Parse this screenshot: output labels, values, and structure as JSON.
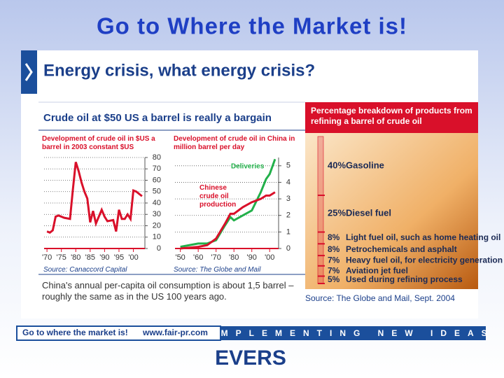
{
  "slide": {
    "title": "Go to Where the Market is!",
    "heading": "Energy crisis, what energy crisis?",
    "subheading": "Crude oil at $50 US a barrel is really a bargain",
    "note": "China's annual per-capita oil consumption is about 1,5 barrel – roughly the same as in the US 100 years ago.",
    "footer": {
      "slogan": "Go to where the market is!",
      "url": "www.fair-pr.com",
      "tagline": "IMPLEMENTING NEW IDEAS",
      "logo": "EVERS"
    }
  },
  "chart_data": [
    {
      "type": "line",
      "title": "Development of crude oil in $US a barrel in 2003 constant $US",
      "source": "Source: Canaccord Capital",
      "color": "#d9102a",
      "x": [
        1970,
        1971,
        1972,
        1973,
        1974,
        1976,
        1978,
        1979,
        1980,
        1981,
        1982,
        1983,
        1984,
        1985,
        1986,
        1987,
        1988,
        1989,
        1990,
        1991,
        1993,
        1994,
        1995,
        1996,
        1997,
        1998,
        1999,
        2000,
        2001,
        2002,
        2003
      ],
      "values": [
        15,
        14,
        16,
        28,
        29,
        27,
        26,
        52,
        76,
        68,
        58,
        50,
        44,
        23,
        33,
        22,
        28,
        34,
        28,
        24,
        25,
        15,
        34,
        26,
        26,
        30,
        26,
        51,
        50,
        48,
        46
      ],
      "xlim": [
        1969,
        2004
      ],
      "xticks": [
        {
          "value": 1970,
          "label": "'70"
        },
        {
          "value": 1975,
          "label": "'75"
        },
        {
          "value": 1980,
          "label": "'80"
        },
        {
          "value": 1985,
          "label": "'85"
        },
        {
          "value": 1990,
          "label": "'90"
        },
        {
          "value": 1995,
          "label": "'95"
        },
        {
          "value": 2000,
          "label": "'00"
        }
      ],
      "ylim": [
        0,
        80
      ],
      "yticks": [
        0,
        10,
        20,
        30,
        40,
        50,
        60,
        70,
        80
      ],
      "grid": true
    },
    {
      "type": "line",
      "title": "Development of crude oil in China in million barrel per day",
      "source": "Source: The Globe and Mail",
      "x": [
        1950,
        1955,
        1960,
        1965,
        1970,
        1975,
        1978,
        1980,
        1985,
        1990,
        1995,
        1998,
        2000,
        2003
      ],
      "series": [
        {
          "name": "Deliveries",
          "color": "#22b04a",
          "values": [
            0.1,
            0.2,
            0.3,
            0.3,
            0.5,
            1.4,
            1.9,
            1.7,
            2.0,
            2.3,
            3.4,
            4.2,
            4.5,
            5.4
          ]
        },
        {
          "name": "Chinese crude oil production",
          "color": "#d9102a",
          "values": [
            0.0,
            0.05,
            0.1,
            0.2,
            0.6,
            1.5,
            2.1,
            2.1,
            2.5,
            2.8,
            3.0,
            3.2,
            3.2,
            3.4
          ]
        }
      ],
      "xlim": [
        1947,
        2005
      ],
      "xticks": [
        {
          "value": 1950,
          "label": "'50"
        },
        {
          "value": 1960,
          "label": "'60"
        },
        {
          "value": 1970,
          "label": "'70"
        },
        {
          "value": 1980,
          "label": "'80"
        },
        {
          "value": 1990,
          "label": "'90"
        },
        {
          "value": 2000,
          "label": "'00"
        }
      ],
      "ylim": [
        0,
        5.5
      ],
      "yticks": [
        0,
        1,
        2,
        3,
        4,
        5
      ],
      "grid": true
    },
    {
      "type": "stack",
      "title": "Percentage breakdown of products from refining a barrel of crude oil",
      "source": "Source: The Globe and Mail, Sept. 2004",
      "color": "#d9102a",
      "categories": [
        "Gasoline",
        "Diesel fuel",
        "Light fuel oil, such as home heating oil",
        "Petrochemicals and asphalt",
        "Heavy fuel oil, for electricity generation",
        "Aviation jet fuel",
        "Used during refining process"
      ],
      "values": [
        40,
        25,
        8,
        8,
        7,
        7,
        5
      ],
      "value_labels": [
        "40%",
        "25%",
        "8%",
        "8%",
        "7%",
        "7%",
        "5%"
      ]
    }
  ]
}
